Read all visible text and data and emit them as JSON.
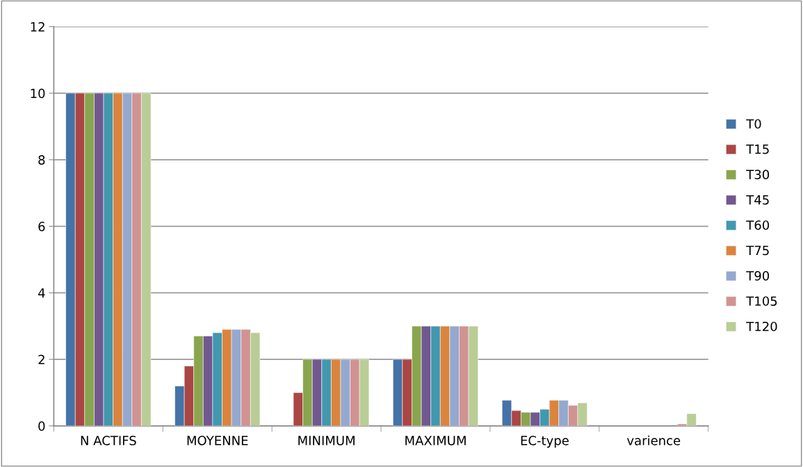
{
  "chart_data": {
    "type": "bar",
    "categories": [
      "N ACTIFS",
      "MOYENNE",
      "MINIMUM",
      "MAXIMUM",
      "EC-type",
      "varience"
    ],
    "series": [
      {
        "name": "T0",
        "color": "#4572a7",
        "values": [
          10,
          1.2,
          0,
          2,
          0.77,
          0
        ]
      },
      {
        "name": "T15",
        "color": "#aa4643",
        "values": [
          10,
          1.8,
          1,
          2,
          0.46,
          0
        ]
      },
      {
        "name": "T30",
        "color": "#89a54e",
        "values": [
          10,
          2.7,
          2,
          3,
          0.41,
          0
        ]
      },
      {
        "name": "T45",
        "color": "#71588f",
        "values": [
          10,
          2.7,
          2,
          3,
          0.41,
          0
        ]
      },
      {
        "name": "T60",
        "color": "#4198af",
        "values": [
          10,
          2.8,
          2,
          3,
          0.5,
          0
        ]
      },
      {
        "name": "T75",
        "color": "#db843d",
        "values": [
          10,
          2.9,
          2,
          3,
          0.77,
          0
        ]
      },
      {
        "name": "T90",
        "color": "#93a9cf",
        "values": [
          10,
          2.9,
          2,
          3,
          0.77,
          0
        ]
      },
      {
        "name": "T105",
        "color": "#d19392",
        "values": [
          10,
          2.9,
          2,
          3,
          0.62,
          0.06
        ]
      },
      {
        "name": "T120",
        "color": "#b9cd96",
        "values": [
          10,
          2.8,
          2,
          3,
          0.69,
          0.37
        ]
      }
    ],
    "ylim": [
      0,
      12
    ],
    "yticks": [
      0,
      2,
      4,
      6,
      8,
      10,
      12
    ],
    "grid": "y",
    "legend": "right"
  }
}
